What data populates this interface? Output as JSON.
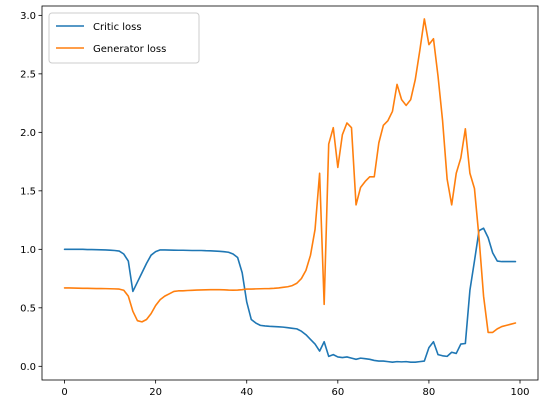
{
  "chart_data": {
    "type": "line",
    "xlim": [
      -4.95,
      103.95
    ],
    "ylim": [
      -0.117,
      3.08
    ],
    "xticks": [
      0,
      20,
      40,
      60,
      80,
      100
    ],
    "yticks": [
      0.0,
      0.5,
      1.0,
      1.5,
      2.0,
      2.5,
      3.0
    ],
    "xtick_labels": [
      "0",
      "20",
      "40",
      "60",
      "80",
      "100"
    ],
    "ytick_labels": [
      "0.0",
      "0.5",
      "1.0",
      "1.5",
      "2.0",
      "2.5",
      "3.0"
    ],
    "grid": false,
    "legend_position": "upper-left",
    "legend": [
      "Critic loss",
      "Generator loss"
    ],
    "series": [
      {
        "name": "Critic loss",
        "color": "#1f77b4",
        "x": [
          0,
          1,
          2,
          3,
          4,
          5,
          6,
          7,
          8,
          9,
          10,
          11,
          12,
          13,
          14,
          15,
          16,
          17,
          18,
          19,
          20,
          21,
          22,
          23,
          24,
          25,
          26,
          27,
          28,
          29,
          30,
          31,
          32,
          33,
          34,
          35,
          36,
          37,
          38,
          39,
          40,
          41,
          42,
          43,
          44,
          45,
          46,
          47,
          48,
          49,
          50,
          51,
          52,
          53,
          54,
          55,
          56,
          57,
          58,
          59,
          60,
          61,
          62,
          63,
          64,
          65,
          66,
          67,
          68,
          69,
          70,
          71,
          72,
          73,
          74,
          75,
          76,
          77,
          78,
          79,
          80,
          81,
          82,
          83,
          84,
          85,
          86,
          87,
          88,
          89,
          90,
          91,
          92,
          93,
          94,
          95,
          96,
          97,
          98,
          99
        ],
        "values": [
          1.0,
          1.0,
          1.0,
          1.0,
          1.0,
          0.998,
          0.998,
          0.997,
          0.996,
          0.995,
          0.993,
          0.99,
          0.985,
          0.96,
          0.9,
          0.64,
          0.72,
          0.8,
          0.88,
          0.95,
          0.98,
          0.995,
          0.995,
          0.994,
          0.993,
          0.992,
          0.992,
          0.991,
          0.99,
          0.99,
          0.99,
          0.988,
          0.987,
          0.985,
          0.983,
          0.98,
          0.975,
          0.96,
          0.93,
          0.8,
          0.55,
          0.4,
          0.37,
          0.35,
          0.345,
          0.342,
          0.34,
          0.338,
          0.335,
          0.33,
          0.325,
          0.32,
          0.3,
          0.27,
          0.23,
          0.19,
          0.13,
          0.21,
          0.085,
          0.1,
          0.08,
          0.075,
          0.08,
          0.07,
          0.06,
          0.07,
          0.065,
          0.06,
          0.05,
          0.045,
          0.045,
          0.04,
          0.035,
          0.04,
          0.038,
          0.04,
          0.035,
          0.035,
          0.04,
          0.045,
          0.16,
          0.21,
          0.1,
          0.09,
          0.085,
          0.12,
          0.11,
          0.19,
          0.195,
          0.65,
          0.9,
          1.16,
          1.18,
          1.1,
          0.97,
          0.9,
          0.895,
          0.895,
          0.895,
          0.895
        ]
      },
      {
        "name": "Generator loss",
        "color": "#ff7f0e",
        "x": [
          0,
          1,
          2,
          3,
          4,
          5,
          6,
          7,
          8,
          9,
          10,
          11,
          12,
          13,
          14,
          15,
          16,
          17,
          18,
          19,
          20,
          21,
          22,
          23,
          24,
          25,
          26,
          27,
          28,
          29,
          30,
          31,
          32,
          33,
          34,
          35,
          36,
          37,
          38,
          39,
          40,
          41,
          42,
          43,
          44,
          45,
          46,
          47,
          48,
          49,
          50,
          51,
          52,
          53,
          54,
          55,
          56,
          57,
          58,
          59,
          60,
          61,
          62,
          63,
          64,
          65,
          66,
          67,
          68,
          69,
          70,
          71,
          72,
          73,
          74,
          75,
          76,
          77,
          78,
          79,
          80,
          81,
          82,
          83,
          84,
          85,
          86,
          87,
          88,
          89,
          90,
          91,
          92,
          93,
          94,
          95,
          96,
          97,
          98,
          99
        ],
        "values": [
          0.67,
          0.67,
          0.669,
          0.668,
          0.667,
          0.667,
          0.666,
          0.665,
          0.665,
          0.664,
          0.663,
          0.662,
          0.66,
          0.65,
          0.6,
          0.47,
          0.39,
          0.38,
          0.4,
          0.45,
          0.52,
          0.57,
          0.6,
          0.62,
          0.64,
          0.645,
          0.645,
          0.648,
          0.65,
          0.652,
          0.653,
          0.654,
          0.655,
          0.655,
          0.655,
          0.654,
          0.652,
          0.651,
          0.652,
          0.655,
          0.66,
          0.66,
          0.662,
          0.663,
          0.664,
          0.665,
          0.667,
          0.67,
          0.675,
          0.68,
          0.69,
          0.71,
          0.75,
          0.82,
          0.95,
          1.17,
          1.65,
          0.53,
          1.9,
          2.04,
          1.7,
          1.98,
          2.08,
          2.04,
          1.38,
          1.53,
          1.58,
          1.62,
          1.62,
          1.91,
          2.06,
          2.1,
          2.18,
          2.41,
          2.28,
          2.23,
          2.28,
          2.45,
          2.7,
          2.97,
          2.75,
          2.8,
          2.48,
          2.1,
          1.6,
          1.38,
          1.65,
          1.78,
          2.03,
          1.65,
          1.52,
          1.1,
          0.6,
          0.29,
          0.29,
          0.32,
          0.34,
          0.35,
          0.36,
          0.37
        ]
      }
    ]
  }
}
